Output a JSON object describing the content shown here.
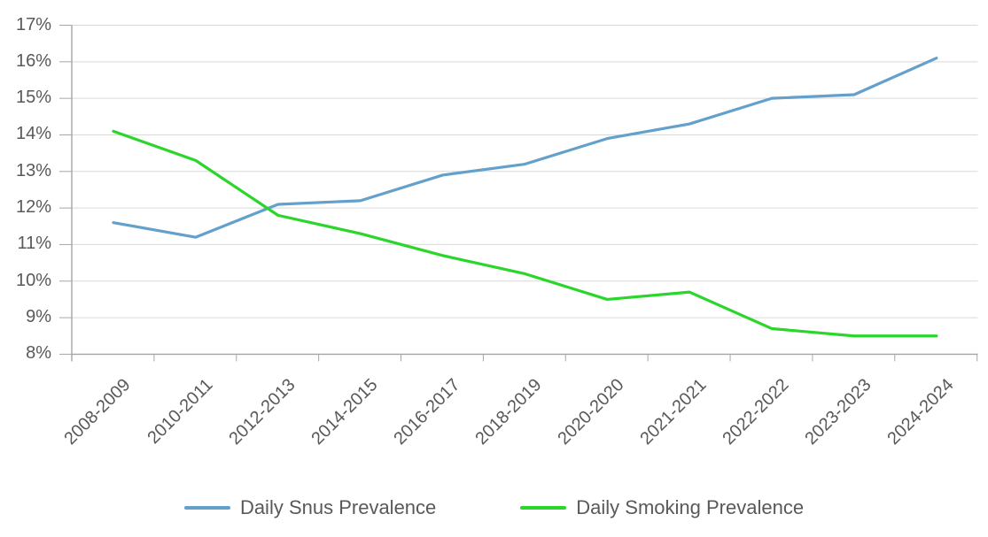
{
  "chart_data": {
    "type": "line",
    "title": "",
    "xlabel": "",
    "ylabel": "",
    "categories": [
      "2008-2009",
      "2010-2011",
      "2012-2013",
      "2014-2015",
      "2016-2017",
      "2018-2019",
      "2020-2020",
      "2021-2021",
      "2022-2022",
      "2023-2023",
      "2024-2024"
    ],
    "series": [
      {
        "name": "Daily Snus Prevalence",
        "color": "#63a0cb",
        "values": [
          11.6,
          11.2,
          12.1,
          12.2,
          12.9,
          13.2,
          13.9,
          14.3,
          15.0,
          15.1,
          16.1
        ]
      },
      {
        "name": "Daily Smoking Prevalence",
        "color": "#2ad62a",
        "values": [
          14.1,
          13.3,
          11.8,
          11.3,
          10.7,
          10.2,
          9.5,
          9.7,
          8.7,
          8.5,
          8.5
        ]
      }
    ],
    "ylim": [
      8,
      17
    ],
    "ytick_values": [
      17,
      16,
      15,
      14,
      13,
      12,
      11,
      10,
      9,
      8
    ],
    "ytick_labels": [
      "17%",
      "16%",
      "15%",
      "14%",
      "13%",
      "12%",
      "11%",
      "10%",
      "9%",
      "8%"
    ],
    "grid": true,
    "legend_position": "bottom",
    "colors": {
      "gridline": "#d9d9d9",
      "axis": "#a6a6a6",
      "text": "#595959"
    }
  }
}
